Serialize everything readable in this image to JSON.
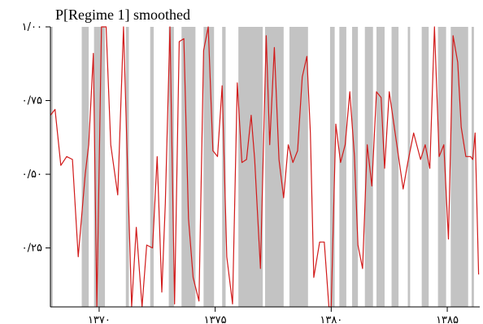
{
  "chart_data": {
    "type": "line",
    "title": "P[Regime 1] smoothed",
    "xlabel": "",
    "ylabel": "",
    "xlim": [
      1367.9,
      1386.4
    ],
    "ylim": [
      0.05,
      1.0
    ],
    "grid": false,
    "legend": "none",
    "y_ticks": [
      {
        "value": 1.0,
        "label": "۱/۰۰"
      },
      {
        "value": 0.75,
        "label": "۰/۷۵"
      },
      {
        "value": 0.5,
        "label": "۰/۵۰"
      },
      {
        "value": 0.25,
        "label": "۰/۲۵"
      }
    ],
    "x_ticks": [
      {
        "value": 1370,
        "label": "۱۳۷۰"
      },
      {
        "value": 1375,
        "label": "۱۳۷۵"
      },
      {
        "value": 1380,
        "label": "۱۳۸۰"
      },
      {
        "value": 1385,
        "label": "۱۳۸۵"
      }
    ],
    "shaded_regimes": [
      [
        1367.9,
        1368.0
      ],
      [
        1369.25,
        1369.55
      ],
      [
        1369.78,
        1370.25
      ],
      [
        1371.15,
        1371.28
      ],
      [
        1372.2,
        1372.35
      ],
      [
        1373.0,
        1373.22
      ],
      [
        1373.55,
        1374.15
      ],
      [
        1374.5,
        1374.95
      ],
      [
        1375.3,
        1375.45
      ],
      [
        1376.0,
        1377.05
      ],
      [
        1377.15,
        1377.95
      ],
      [
        1378.2,
        1379.0
      ],
      [
        1379.95,
        1380.15
      ],
      [
        1380.35,
        1380.65
      ],
      [
        1380.9,
        1381.15
      ],
      [
        1381.45,
        1381.8
      ],
      [
        1381.95,
        1382.3
      ],
      [
        1382.6,
        1382.9
      ],
      [
        1383.3,
        1383.4
      ],
      [
        1383.9,
        1384.2
      ],
      [
        1384.6,
        1384.95
      ],
      [
        1385.15,
        1385.9
      ],
      [
        1386.05,
        1386.15
      ]
    ],
    "series": [
      {
        "color": "#d11a1a",
        "points": [
          [
            1367.9,
            0.7
          ],
          [
            1368.1,
            0.72
          ],
          [
            1368.35,
            0.53
          ],
          [
            1368.6,
            0.56
          ],
          [
            1368.85,
            0.55
          ],
          [
            1369.1,
            0.22
          ],
          [
            1369.4,
            0.5
          ],
          [
            1369.55,
            0.6
          ],
          [
            1369.75,
            0.91
          ],
          [
            1369.9,
            0.05
          ],
          [
            1370.1,
            1.0
          ],
          [
            1370.3,
            1.0
          ],
          [
            1370.5,
            0.6
          ],
          [
            1370.8,
            0.43
          ],
          [
            1371.05,
            1.0
          ],
          [
            1371.25,
            0.45
          ],
          [
            1371.4,
            0.05
          ],
          [
            1371.6,
            0.32
          ],
          [
            1371.85,
            0.05
          ],
          [
            1372.05,
            0.26
          ],
          [
            1372.3,
            0.25
          ],
          [
            1372.5,
            0.56
          ],
          [
            1372.7,
            0.1
          ],
          [
            1372.85,
            0.4
          ],
          [
            1373.05,
            1.0
          ],
          [
            1373.25,
            0.06
          ],
          [
            1373.45,
            0.95
          ],
          [
            1373.65,
            0.96
          ],
          [
            1373.85,
            0.35
          ],
          [
            1374.05,
            0.15
          ],
          [
            1374.3,
            0.07
          ],
          [
            1374.5,
            0.92
          ],
          [
            1374.7,
            1.0
          ],
          [
            1374.9,
            0.58
          ],
          [
            1375.1,
            0.56
          ],
          [
            1375.3,
            0.8
          ],
          [
            1375.5,
            0.22
          ],
          [
            1375.75,
            0.06
          ],
          [
            1375.95,
            0.81
          ],
          [
            1376.15,
            0.54
          ],
          [
            1376.35,
            0.55
          ],
          [
            1376.55,
            0.7
          ],
          [
            1376.7,
            0.55
          ],
          [
            1376.95,
            0.18
          ],
          [
            1377.2,
            0.97
          ],
          [
            1377.35,
            0.6
          ],
          [
            1377.55,
            0.93
          ],
          [
            1377.75,
            0.55
          ],
          [
            1377.95,
            0.42
          ],
          [
            1378.15,
            0.6
          ],
          [
            1378.35,
            0.54
          ],
          [
            1378.55,
            0.58
          ],
          [
            1378.75,
            0.83
          ],
          [
            1378.95,
            0.9
          ],
          [
            1379.1,
            0.64
          ],
          [
            1379.25,
            0.15
          ],
          [
            1379.5,
            0.27
          ],
          [
            1379.7,
            0.27
          ],
          [
            1379.9,
            0.05
          ],
          [
            1380.0,
            0.05
          ],
          [
            1380.2,
            0.67
          ],
          [
            1380.4,
            0.54
          ],
          [
            1380.6,
            0.6
          ],
          [
            1380.8,
            0.78
          ],
          [
            1381.0,
            0.56
          ],
          [
            1381.15,
            0.26
          ],
          [
            1381.35,
            0.18
          ],
          [
            1381.55,
            0.6
          ],
          [
            1381.75,
            0.46
          ],
          [
            1381.95,
            0.78
          ],
          [
            1382.15,
            0.76
          ],
          [
            1382.3,
            0.52
          ],
          [
            1382.5,
            0.78
          ],
          [
            1382.7,
            0.67
          ],
          [
            1382.9,
            0.56
          ],
          [
            1383.1,
            0.45
          ],
          [
            1383.3,
            0.54
          ],
          [
            1383.55,
            0.64
          ],
          [
            1383.85,
            0.55
          ],
          [
            1384.05,
            0.6
          ],
          [
            1384.25,
            0.52
          ],
          [
            1384.45,
            1.0
          ],
          [
            1384.65,
            0.56
          ],
          [
            1384.85,
            0.6
          ],
          [
            1385.05,
            0.28
          ],
          [
            1385.25,
            0.97
          ],
          [
            1385.45,
            0.88
          ],
          [
            1385.6,
            0.66
          ],
          [
            1385.8,
            0.56
          ],
          [
            1386.0,
            0.56
          ],
          [
            1386.1,
            0.55
          ],
          [
            1386.2,
            0.64
          ],
          [
            1386.35,
            0.16
          ]
        ]
      }
    ]
  }
}
